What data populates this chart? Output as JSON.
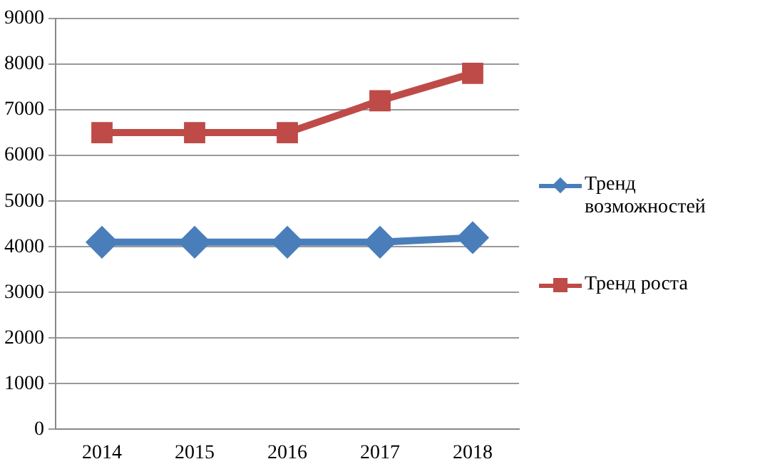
{
  "chart_data": {
    "type": "line",
    "categories": [
      "2014",
      "2015",
      "2016",
      "2017",
      "2018"
    ],
    "series": [
      {
        "name": "Тренд возможностей",
        "color": "#4a7ebb",
        "marker": "diamond",
        "values": [
          4100,
          4100,
          4100,
          4100,
          4200
        ]
      },
      {
        "name": "Тренд роста",
        "color": "#be4b48",
        "marker": "square",
        "values": [
          6500,
          6500,
          6500,
          7200,
          7800
        ]
      }
    ],
    "ylim": [
      0,
      9000
    ],
    "yticks": [
      0,
      1000,
      2000,
      3000,
      4000,
      5000,
      6000,
      7000,
      8000,
      9000
    ],
    "grid": "y",
    "legend": "right",
    "line_style": "solid"
  }
}
